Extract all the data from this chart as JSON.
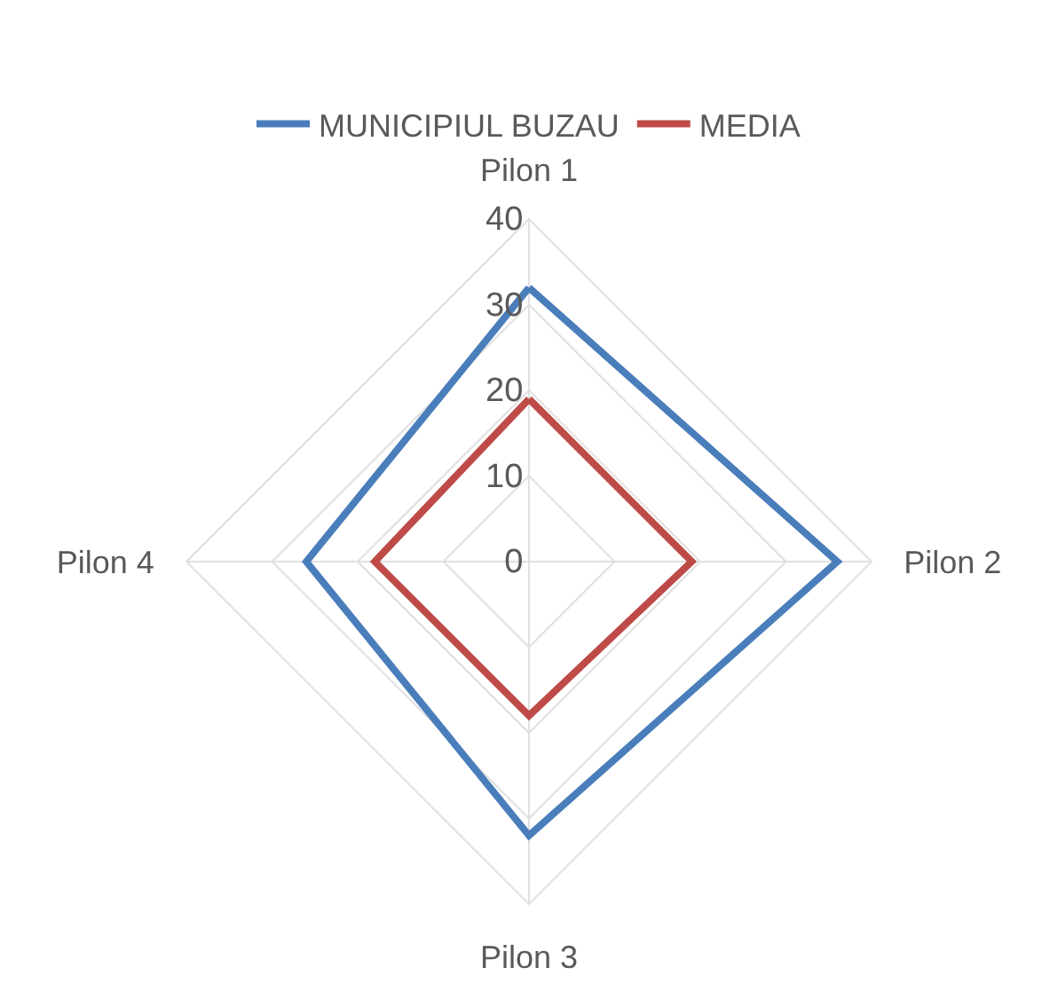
{
  "chart_data": {
    "type": "radar",
    "categories": [
      "Pilon 1",
      "Pilon 2",
      "Pilon 3",
      "Pilon 4"
    ],
    "series": [
      {
        "name": "MUNICIPIUL BUZAU",
        "color": "#4a7ebb",
        "values": [
          32,
          36,
          32,
          26
        ]
      },
      {
        "name": "MEDIA",
        "color": "#be4b48",
        "values": [
          19,
          19,
          18,
          18
        ]
      }
    ],
    "ylim": [
      0,
      40
    ],
    "yticks": [
      0,
      10,
      20,
      30,
      40
    ],
    "grid": true,
    "legend": "top",
    "marker": "none"
  }
}
